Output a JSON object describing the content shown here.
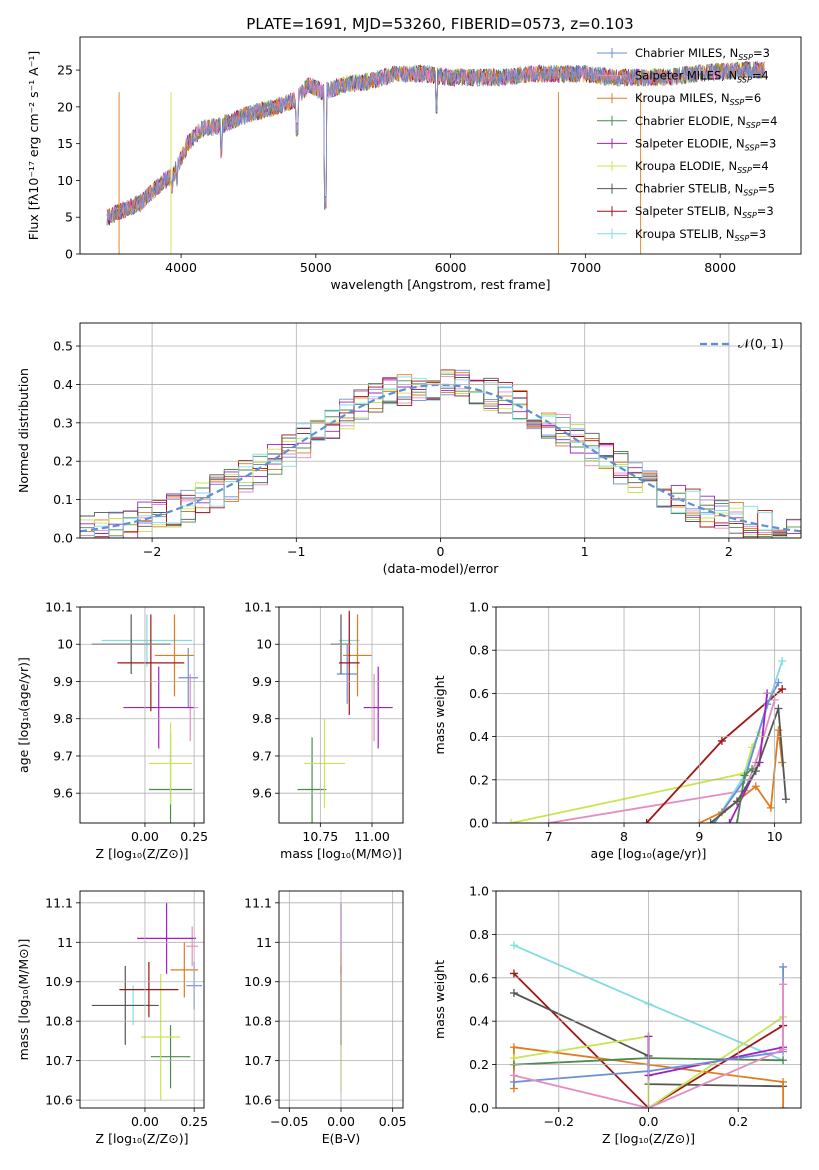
{
  "figure_title": "PLATE=1691, MJD=53260, FIBERID=0573, z=0.103",
  "colors": {
    "chabrier_miles": "#6a8fd6",
    "salpeter_miles": "#e68cc0",
    "kroupa_miles": "#e07b20",
    "chabrier_elodie": "#4d8a4d",
    "salpeter_elodie": "#a020c8",
    "kroupa_elodie": "#c8e650",
    "chabrier_stelib": "#555555",
    "salpeter_stelib": "#a01515",
    "kroupa_stelib": "#80dde0",
    "gaussian": "#5b8fd6"
  },
  "chart_data": [
    {
      "id": "spectrum",
      "type": "line",
      "xlabel": "wavelength [Angstrom, rest frame]",
      "ylabel": "Flux [fλ10⁻¹⁷ erg cm⁻² s⁻¹ A⁻¹]",
      "xlim": [
        3250,
        8600
      ],
      "ylim": [
        0,
        29.5
      ],
      "xticks": [
        4000,
        5000,
        6000,
        7000,
        8000
      ],
      "yticks": [
        0,
        5,
        10,
        15,
        20,
        25
      ],
      "grid": false,
      "legend_position": "top-right",
      "continuum_x": [
        3450,
        3550,
        3700,
        3850,
        3950,
        4050,
        4150,
        4300,
        4500,
        4700,
        4850,
        4950,
        5050,
        5200,
        5400,
        5600,
        5800,
        6000,
        6200,
        6400,
        6600,
        6800,
        7000,
        7200,
        7400,
        7600,
        7800,
        8000,
        8200,
        8330
      ],
      "continuum_y": [
        5,
        5.8,
        7,
        9.5,
        11,
        15,
        17,
        17.5,
        19,
        20,
        21,
        23,
        22,
        23,
        23.5,
        24.5,
        24.5,
        24,
        24,
        24,
        24.5,
        24.5,
        24.5,
        24,
        24,
        24,
        24.5,
        24.8,
        25,
        25
      ],
      "absorption_features": [
        {
          "x": 5070,
          "y": 6
        },
        {
          "x": 3935,
          "y": 8
        },
        {
          "x": 3970,
          "y": 9
        },
        {
          "x": 4860,
          "y": 16
        },
        {
          "x": 4300,
          "y": 13
        },
        {
          "x": 5895,
          "y": 19
        }
      ],
      "legend": [
        {
          "label": "Chabrier MILES, N",
          "sub": "SSP",
          "suffix": "=3",
          "color": "chabrier_miles"
        },
        {
          "label": "Salpeter MILES, N",
          "sub": "SSP",
          "suffix": "=4",
          "color": "salpeter_miles"
        },
        {
          "label": "Kroupa MILES, N",
          "sub": "SSP",
          "suffix": "=6",
          "color": "kroupa_miles"
        },
        {
          "label": "Chabrier ELODIE, N",
          "sub": "SSP",
          "suffix": "=4",
          "color": "chabrier_elodie"
        },
        {
          "label": "Salpeter ELODIE, N",
          "sub": "SSP",
          "suffix": "=3",
          "color": "salpeter_elodie"
        },
        {
          "label": "Kroupa ELODIE, N",
          "sub": "SSP",
          "suffix": "=4",
          "color": "kroupa_elodie"
        },
        {
          "label": "Chabrier STELIB, N",
          "sub": "SSP",
          "suffix": "=5",
          "color": "chabrier_stelib"
        },
        {
          "label": "Salpeter STELIB, N",
          "sub": "SSP",
          "suffix": "=3",
          "color": "salpeter_stelib"
        },
        {
          "label": "Kroupa STELIB, N",
          "sub": "SSP",
          "suffix": "=3",
          "color": "kroupa_stelib"
        }
      ]
    },
    {
      "id": "residuals",
      "type": "histogram",
      "xlabel": "(data-model)/error",
      "ylabel": "Normed distribution",
      "xlim": [
        -2.5,
        2.5
      ],
      "ylim": [
        0,
        0.56
      ],
      "xticks": [
        -2,
        -1,
        0,
        1,
        2
      ],
      "yticks": [
        0.0,
        0.1,
        0.2,
        0.3,
        0.4,
        0.5
      ],
      "grid": true,
      "legend_position": "top-right",
      "legend": [
        {
          "label": "𝒩(0, 1)",
          "color": "gaussian",
          "dashed": true
        }
      ],
      "bin_width": 0.1
    },
    {
      "id": "age_vs_z",
      "type": "errorbar",
      "xlabel": "Z [log₁₀(Z/Z⊙)]",
      "ylabel": "age  [log₁₀(age/yr)]",
      "xlim": [
        -0.33,
        0.3
      ],
      "ylim": [
        9.52,
        10.1
      ],
      "xticks": [
        0.0,
        0.25
      ],
      "xticklabels": [
        "0.00",
        "0.25"
      ],
      "yticks": [
        9.6,
        9.7,
        9.8,
        9.9,
        10.0,
        10.1
      ],
      "grid": true,
      "points": [
        {
          "x": 0.01,
          "y": 10.01,
          "xerr": 0.23,
          "yerr": 0.07,
          "color": "kroupa_stelib"
        },
        {
          "x": 0.22,
          "y": 9.91,
          "xerr": 0.05,
          "yerr": 0.08,
          "color": "chabrier_miles"
        },
        {
          "x": 0.23,
          "y": 9.83,
          "xerr": 0.04,
          "yerr": 0.09,
          "color": "salpeter_miles"
        },
        {
          "x": 0.15,
          "y": 9.97,
          "xerr": 0.1,
          "yerr": 0.11,
          "color": "kroupa_miles"
        },
        {
          "x": 0.13,
          "y": 9.61,
          "xerr": 0.11,
          "yerr": 0.15,
          "color": "chabrier_elodie"
        },
        {
          "x": 0.07,
          "y": 9.83,
          "xerr": 0.18,
          "yerr": 0.11,
          "color": "salpeter_elodie"
        },
        {
          "x": 0.13,
          "y": 9.68,
          "xerr": 0.11,
          "yerr": 0.11,
          "color": "kroupa_elodie"
        },
        {
          "x": -0.07,
          "y": 10.0,
          "xerr": 0.2,
          "yerr": 0.08,
          "color": "chabrier_stelib"
        },
        {
          "x": 0.03,
          "y": 9.95,
          "xerr": 0.17,
          "yerr": 0.13,
          "color": "salpeter_stelib"
        }
      ]
    },
    {
      "id": "age_vs_mass",
      "type": "errorbar",
      "xlabel": "mass [log₁₀(M/M⊙)]",
      "ylabel": "",
      "xlim": [
        10.55,
        11.15
      ],
      "ylim": [
        9.52,
        10.1
      ],
      "xticks": [
        10.75,
        11.0
      ],
      "xticklabels": [
        "10.75",
        "11.00"
      ],
      "yticks": [
        9.6,
        9.7,
        9.8,
        9.9,
        10.0,
        10.1
      ],
      "grid": true,
      "points": [
        {
          "x": 10.89,
          "y": 10.01,
          "xerr": 0.05,
          "yerr": 0.07,
          "color": "kroupa_stelib"
        },
        {
          "x": 10.88,
          "y": 9.92,
          "xerr": 0.05,
          "yerr": 0.08,
          "color": "chabrier_miles"
        },
        {
          "x": 11.01,
          "y": 9.83,
          "xerr": 0.05,
          "yerr": 0.09,
          "color": "salpeter_miles"
        },
        {
          "x": 10.93,
          "y": 9.97,
          "xerr": 0.07,
          "yerr": 0.11,
          "color": "kroupa_miles"
        },
        {
          "x": 10.71,
          "y": 9.61,
          "xerr": 0.07,
          "yerr": 0.14,
          "color": "chabrier_elodie"
        },
        {
          "x": 11.03,
          "y": 9.83,
          "xerr": 0.07,
          "yerr": 0.11,
          "color": "salpeter_elodie"
        },
        {
          "x": 10.77,
          "y": 9.68,
          "xerr": 0.1,
          "yerr": 0.12,
          "color": "kroupa_elodie"
        },
        {
          "x": 10.85,
          "y": 10.0,
          "xerr": 0.05,
          "yerr": 0.08,
          "color": "chabrier_stelib"
        },
        {
          "x": 10.89,
          "y": 9.95,
          "xerr": 0.05,
          "yerr": 0.14,
          "color": "salpeter_stelib"
        }
      ]
    },
    {
      "id": "weight_vs_age",
      "type": "line",
      "xlabel": "age  [log₁₀(age/yr)]",
      "ylabel": "mass weight",
      "xlim": [
        6.3,
        10.35
      ],
      "ylim": [
        0,
        1.0
      ],
      "xticks": [
        7,
        8,
        9,
        10
      ],
      "yticks": [
        0.0,
        0.2,
        0.4,
        0.6,
        0.8,
        1.0
      ],
      "grid": true,
      "series": [
        {
          "color": "kroupa_elodie",
          "x": [
            6.5,
            9.6,
            9.7,
            9.8
          ],
          "y": [
            0.0,
            0.23,
            0.35,
            0.42
          ]
        },
        {
          "color": "salpeter_miles",
          "x": [
            7.0,
            9.6,
            9.75,
            10.0
          ],
          "y": [
            0.0,
            0.15,
            0.28,
            0.57
          ]
        },
        {
          "color": "salpeter_stelib",
          "x": [
            8.3,
            9.3,
            10.1
          ],
          "y": [
            0.0,
            0.38,
            0.62
          ]
        },
        {
          "color": "kroupa_stelib",
          "x": [
            9.2,
            9.6,
            10.1
          ],
          "y": [
            0.0,
            0.22,
            0.75
          ]
        },
        {
          "color": "kroupa_miles",
          "x": [
            9.0,
            9.3,
            9.5,
            9.75,
            9.95,
            10.05,
            10.1
          ],
          "y": [
            0.0,
            0.05,
            0.1,
            0.17,
            0.07,
            0.43,
            0.28
          ]
        },
        {
          "color": "chabrier_miles",
          "x": [
            9.2,
            9.6,
            9.9,
            10.05
          ],
          "y": [
            0.0,
            0.2,
            0.55,
            0.65
          ]
        },
        {
          "color": "salpeter_elodie",
          "x": [
            9.4,
            9.8,
            9.9
          ],
          "y": [
            0.0,
            0.28,
            0.6
          ]
        },
        {
          "color": "chabrier_elodie",
          "x": [
            9.5,
            9.6,
            9.7
          ],
          "y": [
            0.0,
            0.22,
            0.25
          ]
        },
        {
          "color": "chabrier_stelib",
          "x": [
            9.15,
            9.5,
            9.75,
            10.05,
            10.15
          ],
          "y": [
            0.0,
            0.1,
            0.24,
            0.53,
            0.11
          ]
        }
      ]
    },
    {
      "id": "mass_vs_z",
      "type": "errorbar",
      "xlabel": "Z [log₁₀(Z/Z⊙)]",
      "ylabel": "mass [log₁₀(M/M⊙)]",
      "xlim": [
        -0.33,
        0.3
      ],
      "ylim": [
        10.58,
        11.13
      ],
      "xticks": [
        0.0,
        0.25
      ],
      "xticklabels": [
        "0.00",
        "0.25"
      ],
      "yticks": [
        10.6,
        10.7,
        10.8,
        10.9,
        11.0,
        11.1
      ],
      "grid": true,
      "points": [
        {
          "x": -0.06,
          "y": 10.84,
          "xerr": 0.1,
          "yerr": 0.05,
          "color": "kroupa_stelib"
        },
        {
          "x": 0.25,
          "y": 10.89,
          "xerr": 0.04,
          "yerr": 0.06,
          "color": "chabrier_miles"
        },
        {
          "x": 0.24,
          "y": 10.99,
          "xerr": 0.03,
          "yerr": 0.05,
          "color": "salpeter_miles"
        },
        {
          "x": 0.2,
          "y": 10.93,
          "xerr": 0.07,
          "yerr": 0.07,
          "color": "kroupa_miles"
        },
        {
          "x": 0.13,
          "y": 10.71,
          "xerr": 0.1,
          "yerr": 0.08,
          "color": "chabrier_elodie"
        },
        {
          "x": 0.11,
          "y": 11.01,
          "xerr": 0.15,
          "yerr": 0.09,
          "color": "salpeter_elodie"
        },
        {
          "x": 0.08,
          "y": 10.76,
          "xerr": 0.1,
          "yerr": 0.16,
          "color": "kroupa_elodie"
        },
        {
          "x": -0.1,
          "y": 10.84,
          "xerr": 0.17,
          "yerr": 0.1,
          "color": "chabrier_stelib"
        },
        {
          "x": 0.02,
          "y": 10.88,
          "xerr": 0.15,
          "yerr": 0.07,
          "color": "salpeter_stelib"
        }
      ]
    },
    {
      "id": "mass_vs_ebv",
      "type": "errorbar",
      "xlabel": "E(B-V)",
      "ylabel": "",
      "xlim": [
        -0.06,
        0.06
      ],
      "ylim": [
        10.58,
        11.13
      ],
      "xticks": [
        -0.05,
        0.0,
        0.05
      ],
      "xticklabels": [
        "−0.05",
        "0.00",
        "0.05"
      ],
      "yticks": [
        10.6,
        10.7,
        10.8,
        10.9,
        11.0,
        11.1
      ],
      "grid": true,
      "points": [
        {
          "x": 0.0,
          "y": 11.01,
          "xerr": 0.0,
          "yerr": 0.09,
          "color": "salpeter_elodie"
        },
        {
          "x": 0.0,
          "y": 10.75,
          "xerr": 0.0,
          "yerr": 0.13,
          "color": "kroupa_elodie"
        },
        {
          "x": 0.0,
          "y": 10.84,
          "xerr": 0.0,
          "yerr": 0.1,
          "color": "chabrier_stelib"
        },
        {
          "x": 0.0,
          "y": 10.93,
          "xerr": 0.0,
          "yerr": 0.05,
          "color": "kroupa_miles"
        }
      ]
    },
    {
      "id": "weight_vs_z",
      "type": "line",
      "xlabel": "Z [log₁₀(Z/Z⊙)]",
      "ylabel": "mass weight",
      "xlim": [
        -0.34,
        0.34
      ],
      "ylim": [
        0,
        1.0
      ],
      "xticks": [
        -0.2,
        0.0,
        0.2
      ],
      "xticklabels": [
        "−0.2",
        "0.0",
        "0.2"
      ],
      "yticks": [
        0.0,
        0.2,
        0.4,
        0.6,
        0.8,
        1.0
      ],
      "grid": true,
      "series": [
        {
          "color": "kroupa_stelib",
          "x": [
            -0.3,
            0.0,
            0.3
          ],
          "y": [
            0.75,
            0.48,
            0.22
          ]
        },
        {
          "color": "salpeter_stelib",
          "x": [
            -0.3,
            0.0,
            0.3
          ],
          "y": [
            0.62,
            0.0,
            0.38
          ]
        },
        {
          "color": "chabrier_stelib",
          "x": [
            -0.3,
            0.0,
            0.0,
            0.3
          ],
          "y": [
            0.53,
            0.24,
            0.11,
            0.1
          ]
        },
        {
          "color": "kroupa_miles",
          "x": [
            -0.3,
            -0.3,
            0.3,
            0.3
          ],
          "y": [
            0.09,
            0.28,
            0.12,
            0.0
          ]
        },
        {
          "color": "kroupa_elodie",
          "x": [
            -0.3,
            0.0,
            0.0,
            0.3
          ],
          "y": [
            0.23,
            0.33,
            0.0,
            0.42
          ]
        },
        {
          "color": "chabrier_elodie",
          "x": [
            -0.3,
            0.0,
            0.3
          ],
          "y": [
            0.2,
            0.23,
            0.22
          ]
        },
        {
          "color": "salpeter_elodie",
          "x": [
            0.0,
            0.0,
            0.3
          ],
          "y": [
            0.33,
            0.15,
            0.28
          ]
        },
        {
          "color": "chabrier_miles",
          "x": [
            -0.3,
            0.0,
            0.3,
            0.3
          ],
          "y": [
            0.12,
            0.17,
            0.26,
            0.65
          ]
        },
        {
          "color": "salpeter_miles",
          "x": [
            -0.3,
            0.0,
            0.3,
            0.3
          ],
          "y": [
            0.15,
            0.0,
            0.27,
            0.57
          ]
        }
      ]
    }
  ]
}
